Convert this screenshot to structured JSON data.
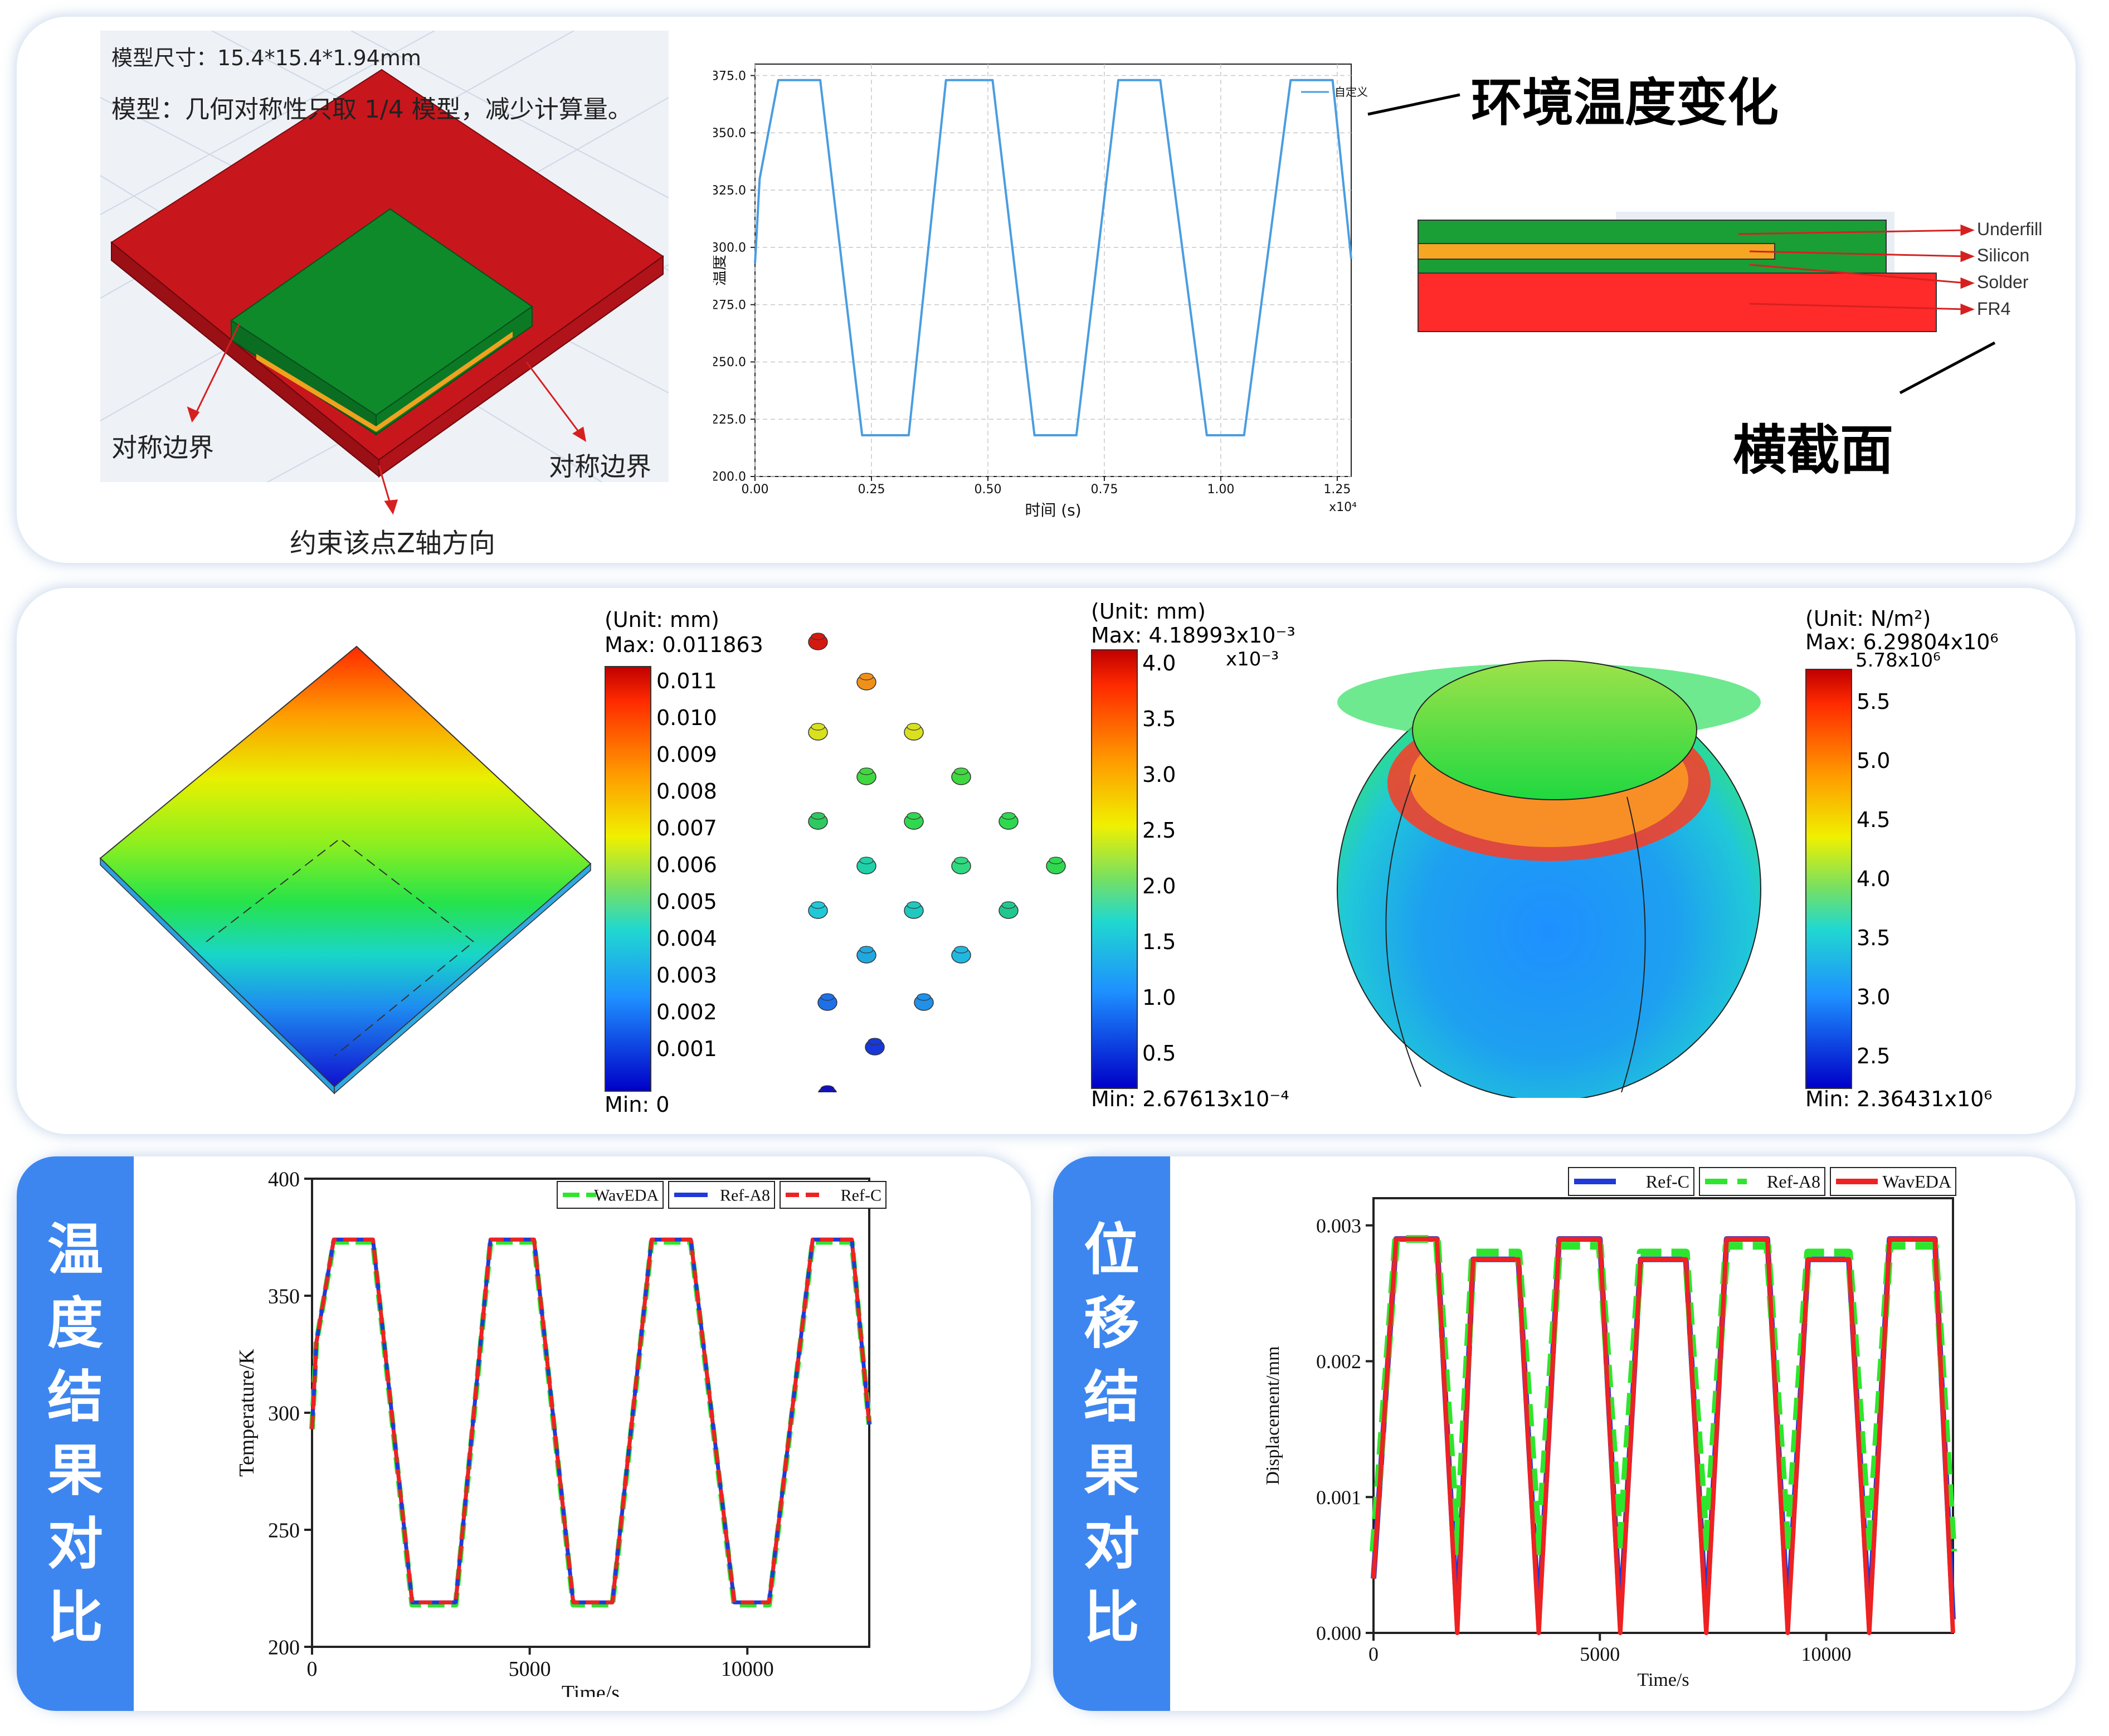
{
  "top": {
    "model": {
      "size_label": "模型尺寸：15.4*15.4*1.94mm",
      "desc_label": "模型：几何对称性只取 1/4 模型，减少计算量。",
      "sym_left": "对称边界",
      "sym_right": "对称边界",
      "constraint": "约束该点Z轴方向",
      "colors": {
        "fr4": "#c8161d",
        "chip": "#0e8a2a",
        "solder": "#f0a21e"
      }
    },
    "env_chart_caption": "环境温度变化",
    "cross_section": {
      "title": "横截面",
      "layers": [
        "Underfill",
        "Silicon",
        "Solder",
        "FR4"
      ],
      "colors": {
        "underfill": "#1a9e36",
        "silicon": "#f5a623",
        "fr4": "#ff2a2a"
      }
    }
  },
  "middle": {
    "disp_legend": {
      "unit": "(Unit: mm)",
      "max": "Max: 0.011863",
      "min": "Min: 0",
      "ticks": [
        "0.011",
        "0.010",
        "0.009",
        "0.008",
        "0.007",
        "0.006",
        "0.005",
        "0.004",
        "0.003",
        "0.002",
        "0.001"
      ]
    },
    "ball_legend": {
      "unit": "(Unit: mm)",
      "max": "Max: 4.18993x10⁻³",
      "min": "Min: 2.67613x10⁻⁴",
      "exp": "x10⁻³",
      "ticks": [
        "4.0",
        "3.5",
        "3.0",
        "2.5",
        "2.0",
        "1.5",
        "1.0",
        "0.5"
      ]
    },
    "stress_legend": {
      "unit": "(Unit: N/m²)",
      "max": "Max: 6.29804x10⁶",
      "top": "5.78x10⁶",
      "min": "Min: 2.36431x10⁶",
      "ticks": [
        "5.5",
        "5.0",
        "4.5",
        "4.0",
        "3.5",
        "3.0",
        "2.5"
      ]
    }
  },
  "bottom": {
    "temp_tab": [
      "温",
      "度",
      "结",
      "果",
      "对",
      "比"
    ],
    "disp_tab": [
      "位",
      "移",
      "结",
      "果",
      "对",
      "比"
    ]
  },
  "chart_data": [
    {
      "type": "line",
      "xlabel": "时间 (s)",
      "ylabel": "温度",
      "x_multiplier": "x10⁴",
      "xlim": [
        0,
        1.28
      ],
      "ylim": [
        200,
        380
      ],
      "xticks": [
        "0.00",
        "0.25",
        "0.50",
        "0.75",
        "1.00",
        "1.25"
      ],
      "yticks": [
        "200.0",
        "225.0",
        "250.0",
        "275.0",
        "300.0",
        "325.0",
        "350.0",
        "375.0"
      ],
      "grid": true,
      "legend_position": "top-right",
      "series": [
        {
          "name": "自定义",
          "color": "#4a9de0",
          "x": [
            0,
            0.01,
            0.05,
            0.14,
            0.23,
            0.33,
            0.41,
            0.51,
            0.6,
            0.69,
            0.78,
            0.87,
            0.97,
            1.05,
            1.15,
            1.24,
            1.28
          ],
          "y": [
            293,
            330,
            373,
            373,
            218,
            218,
            373,
            373,
            218,
            218,
            373,
            373,
            218,
            218,
            373,
            373,
            295
          ]
        }
      ]
    },
    {
      "type": "line",
      "xlabel": "Time/s",
      "ylabel": "Temperature/K",
      "xlim": [
        0,
        12800
      ],
      "ylim": [
        200,
        400
      ],
      "xticks": [
        "0",
        "5000",
        "10000"
      ],
      "yticks": [
        "200",
        "250",
        "300",
        "350",
        "400"
      ],
      "grid": false,
      "legend_position": "top-right",
      "series": [
        {
          "name": "WavEDA",
          "color": "#2ee52e",
          "x": [
            0,
            100,
            500,
            1400,
            2300,
            3300,
            4100,
            5100,
            6000,
            6900,
            7800,
            8700,
            9700,
            10500,
            11500,
            12400,
            12800
          ],
          "y": [
            293,
            330,
            373,
            373,
            218,
            218,
            373,
            373,
            218,
            218,
            373,
            373,
            218,
            218,
            373,
            373,
            295
          ]
        },
        {
          "name": "Ref-A8",
          "color": "#1f3ad8",
          "x": [
            0,
            100,
            500,
            1400,
            2300,
            3300,
            4100,
            5100,
            6000,
            6900,
            7800,
            8700,
            9700,
            10500,
            11500,
            12400,
            12800
          ],
          "y": [
            293,
            330,
            374,
            374,
            219,
            219,
            374,
            374,
            219,
            219,
            374,
            374,
            219,
            219,
            374,
            374,
            295
          ]
        },
        {
          "name": "Ref-C",
          "color": "#ee2222",
          "x": [
            0,
            100,
            500,
            1400,
            2300,
            3300,
            4100,
            5100,
            6000,
            6900,
            7800,
            8700,
            9700,
            10500,
            11500,
            12400,
            12800
          ],
          "y": [
            293,
            330,
            374,
            374,
            219,
            219,
            374,
            374,
            219,
            219,
            374,
            374,
            219,
            219,
            374,
            374,
            295
          ]
        }
      ]
    },
    {
      "type": "line",
      "xlabel": "Time/s",
      "ylabel": "Displacement/mm",
      "xlim": [
        0,
        12800
      ],
      "ylim": [
        0,
        0.0032
      ],
      "xticks": [
        "0",
        "5000",
        "10000"
      ],
      "yticks": [
        "0.000",
        "0.001",
        "0.002",
        "0.003"
      ],
      "grid": false,
      "legend_position": "top-right",
      "series": [
        {
          "name": "Ref-C",
          "color": "#1f3ad8",
          "x": [
            0,
            500,
            1400,
            1850,
            2200,
            3200,
            3650,
            4100,
            5000,
            5450,
            5900,
            6900,
            7350,
            7800,
            8700,
            9150,
            9600,
            10500,
            10950,
            11400,
            12400,
            12800
          ],
          "y": [
            0.0004,
            0.0029,
            0.0029,
            0.0001,
            0.00275,
            0.00275,
            0.0001,
            0.0029,
            0.0029,
            0.0001,
            0.00275,
            0.00275,
            0.0001,
            0.0029,
            0.0029,
            0.0001,
            0.00275,
            0.00275,
            0.0001,
            0.0029,
            0.0029,
            0.0001
          ]
        },
        {
          "name": "Ref-A8",
          "color": "#2ee52e",
          "x": [
            0,
            500,
            1400,
            1850,
            2200,
            3200,
            3650,
            4100,
            5000,
            5450,
            5900,
            6900,
            7350,
            7800,
            8700,
            9150,
            9600,
            10500,
            10950,
            11400,
            12400,
            12800
          ],
          "y": [
            0.0006,
            0.0029,
            0.0029,
            0.0006,
            0.0028,
            0.0028,
            0.0006,
            0.00285,
            0.00285,
            0.0006,
            0.0028,
            0.0028,
            0.0006,
            0.00285,
            0.00285,
            0.0006,
            0.0028,
            0.0028,
            0.0006,
            0.00285,
            0.00285,
            0.0006
          ]
        },
        {
          "name": "WavEDA",
          "color": "#ee2222",
          "x": [
            0,
            500,
            1400,
            1850,
            2200,
            3200,
            3650,
            4100,
            5000,
            5450,
            5900,
            6900,
            7350,
            7800,
            8700,
            9150,
            9600,
            10500,
            10950,
            11400,
            12400,
            12800
          ],
          "y": [
            0.0004,
            0.0029,
            0.0029,
            0.0,
            0.00275,
            0.00275,
            0.0,
            0.0029,
            0.0029,
            0.0,
            0.00275,
            0.00275,
            0.0,
            0.0029,
            0.0029,
            0.0,
            0.00275,
            0.00275,
            0.0,
            0.0029,
            0.0029,
            0.0
          ]
        }
      ]
    }
  ]
}
